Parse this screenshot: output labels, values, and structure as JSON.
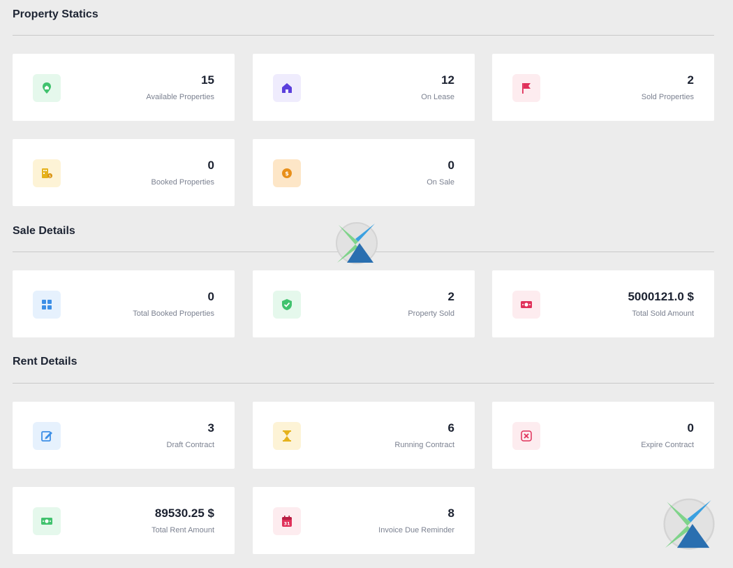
{
  "sections": {
    "property": {
      "title": "Property Statics",
      "cards": [
        {
          "value": "15",
          "label": "Available Properties",
          "icon": "home-pin-icon",
          "bg": "#e5f8ec",
          "fg": "#41c26e"
        },
        {
          "value": "12",
          "label": "On Lease",
          "icon": "house-icon",
          "bg": "#efecfd",
          "fg": "#5b3fdc"
        },
        {
          "value": "2",
          "label": "Sold Properties",
          "icon": "flag-icon",
          "bg": "#fdecef",
          "fg": "#e0315a"
        },
        {
          "value": "0",
          "label": "Booked Properties",
          "icon": "building-coins-icon",
          "bg": "#fdf3d6",
          "fg": "#e5b21c"
        },
        {
          "value": "0",
          "label": "On Sale",
          "icon": "sale-tag-icon",
          "bg": "#fde6c7",
          "fg": "#e88f1a"
        }
      ]
    },
    "sale": {
      "title": "Sale Details",
      "cards": [
        {
          "value": "0",
          "label": "Total Booked Properties",
          "icon": "grid-icon",
          "bg": "#e6f1fd",
          "fg": "#3d8fe6"
        },
        {
          "value": "2",
          "label": "Property Sold",
          "icon": "shield-check-icon",
          "bg": "#e5f8ec",
          "fg": "#41c26e"
        },
        {
          "value": "5000121.0 $",
          "label": "Total Sold Amount",
          "icon": "banknote-icon",
          "bg": "#fdecef",
          "fg": "#e0315a"
        }
      ]
    },
    "rent": {
      "title": "Rent Details",
      "cards": [
        {
          "value": "3",
          "label": "Draft Contract",
          "icon": "edit-icon",
          "bg": "#e6f1fd",
          "fg": "#3d8fe6"
        },
        {
          "value": "6",
          "label": "Running Contract",
          "icon": "hourglass-icon",
          "bg": "#fdf3d6",
          "fg": "#e5b21c"
        },
        {
          "value": "0",
          "label": "Expire Contract",
          "icon": "close-box-icon",
          "bg": "#fdecef",
          "fg": "#e0315a"
        },
        {
          "value": "89530.25 $",
          "label": "Total Rent Amount",
          "icon": "banknote-icon",
          "bg": "#e5f8ec",
          "fg": "#41c26e"
        },
        {
          "value": "8",
          "label": "Invoice Due Reminder",
          "icon": "calendar-icon",
          "bg": "#fdecef",
          "fg": "#e0315a",
          "icon_text": "31"
        }
      ]
    }
  },
  "watermark_icon": "logo-icon"
}
